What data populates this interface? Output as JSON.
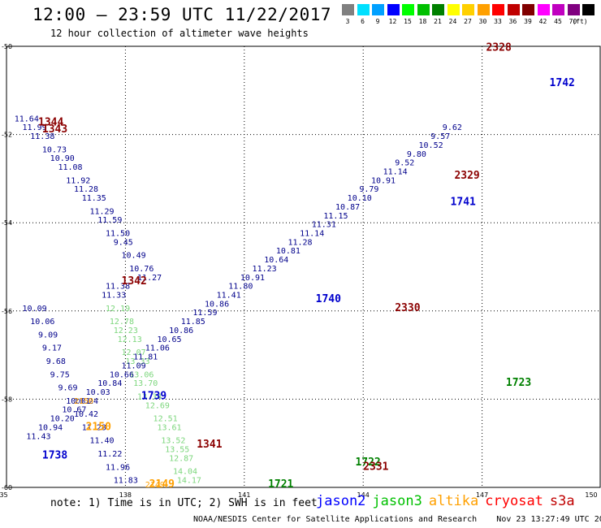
{
  "header": {
    "title": "12:00 – 23:59 UTC 11/22/2017",
    "subtitle": "12 hour collection of altimeter wave heights"
  },
  "color_scale": {
    "unit_label": "(ft)",
    "bins": [
      {
        "label": "3",
        "color": "#808080"
      },
      {
        "label": "6",
        "color": "#00e0ff"
      },
      {
        "label": "9",
        "color": "#00a0ff"
      },
      {
        "label": "12",
        "color": "#0000ff"
      },
      {
        "label": "15",
        "color": "#00ff00"
      },
      {
        "label": "18",
        "color": "#00c000"
      },
      {
        "label": "21",
        "color": "#008000"
      },
      {
        "label": "24",
        "color": "#ffff00"
      },
      {
        "label": "27",
        "color": "#ffd000"
      },
      {
        "label": "30",
        "color": "#ffa000"
      },
      {
        "label": "33",
        "color": "#ff0000"
      },
      {
        "label": "36",
        "color": "#c00000"
      },
      {
        "label": "39",
        "color": "#800000"
      },
      {
        "label": "42",
        "color": "#ff00ff"
      },
      {
        "label": "45",
        "color": "#c000c0"
      },
      {
        "label": "70",
        "color": "#800080"
      },
      {
        "label": "",
        "color": "#000000"
      }
    ]
  },
  "footer": {
    "note": "note: 1) Time is in UTC; 2) SWH is in feet",
    "center": "NOAA/NESDIS Center for Satellite Applications and Research",
    "timestamp": "Nov 23 13:27:49 UTC 2017"
  },
  "legend": [
    {
      "name": "jason2",
      "color": "#0000ff"
    },
    {
      "name": "jason3",
      "color": "#00c000"
    },
    {
      "name": "altika",
      "color": "#ffa000"
    },
    {
      "name": "cryosat",
      "color": "#ff0000"
    },
    {
      "name": "s3a",
      "color": "#c00000"
    }
  ],
  "chart_data": {
    "type": "scatter",
    "xlim": [
      135,
      150
    ],
    "ylim": [
      -60,
      -50
    ],
    "x_ticks": [
      "135",
      "138",
      "141",
      "144",
      "147",
      "150"
    ],
    "y_ticks": [
      "-50",
      "-52",
      "-54",
      "-56",
      "-58",
      "-60"
    ],
    "grid": true,
    "series": [
      {
        "name": "pass 1343/1342 descending",
        "color": "#00008b",
        "x": [
          135.2,
          135.4,
          135.6,
          135.9,
          136.1,
          136.3,
          136.5,
          136.7,
          136.9,
          137.1,
          137.3,
          137.5,
          137.7,
          137.9,
          138.1,
          138.3
        ],
        "y": [
          -51.7,
          -51.9,
          -52.1,
          -52.4,
          -52.6,
          -52.8,
          -53.1,
          -53.3,
          -53.5,
          -53.8,
          -54.0,
          -54.3,
          -54.5,
          -54.8,
          -55.1,
          -55.3
        ],
        "labels": [
          "11.64",
          "11.99",
          "11.38",
          "10.73",
          "10.90",
          "11.08",
          "11.92",
          "11.28",
          "11.35",
          "11.29",
          "11.59",
          "11.50",
          "9.45",
          "10.49",
          "10.76",
          "11.27"
        ]
      },
      {
        "name": "pass 1343/1342 descending cont",
        "color": "#00008b",
        "x": [
          137.5,
          137.4
        ],
        "y": [
          -55.5,
          -55.7
        ],
        "labels": [
          "11.38",
          "11.33"
        ]
      },
      {
        "name": "pass 1342 green",
        "color": "#7cd67c",
        "x": [
          137.5,
          137.6,
          137.7,
          137.8,
          137.9,
          138.0,
          138.1,
          138.2,
          138.3,
          138.5,
          138.7,
          138.8,
          138.9,
          139.0,
          139.1,
          139.2,
          139.3,
          139.4,
          139.5,
          139.6,
          139.7
        ],
        "y": [
          -56.0,
          -56.3,
          -56.5,
          -56.7,
          -57.0,
          -57.2,
          -57.5,
          -57.7,
          -58.0,
          -58.2,
          -58.5,
          -58.7,
          -59.0,
          -59.2,
          -59.4,
          -59.7,
          -59.9,
          -60.0,
          -60.0,
          -60.0,
          -60.0
        ],
        "labels": [
          "12.19",
          "12.78",
          "12.23",
          "12.13",
          "12.07",
          "13.33",
          "13.06",
          "13.70",
          "13.34",
          "12.69",
          "12.51",
          "13.61",
          "13.52",
          "13.55",
          "12.87",
          "14.04",
          "14.17",
          "",
          "",
          "",
          ""
        ]
      },
      {
        "name": "pass 1341",
        "color": "#00008b",
        "x": [
          135.4,
          135.6,
          135.8,
          135.9,
          136.0,
          136.1,
          136.3,
          136.5,
          136.7,
          136.9,
          137.1,
          137.3,
          137.5,
          137.7
        ],
        "y": [
          -56.0,
          -56.3,
          -56.6,
          -56.9,
          -57.2,
          -57.5,
          -57.8,
          -58.1,
          -58.4,
          -58.7,
          -59.0,
          -59.3,
          -59.6,
          -59.9
        ],
        "labels": [
          "10.09",
          "10.06",
          "9.09",
          "9.17",
          "9.68",
          "9.75",
          "9.69",
          "10.01",
          "10.42",
          "11.28",
          "11.40",
          "11.22",
          "11.96",
          "11.83"
        ]
      },
      {
        "name": "pass 1739/1740 ascending",
        "color": "#00008b",
        "x": [
          135.5,
          135.8,
          136.1,
          136.4,
          136.7,
          137.0,
          137.3,
          137.6,
          137.9,
          138.2,
          138.5,
          138.8,
          139.1,
          139.4,
          139.7,
          140.0,
          140.3,
          140.6,
          140.9,
          141.2,
          141.5,
          141.8,
          142.1,
          142.4,
          142.7,
          143.0,
          143.3,
          143.6,
          143.9,
          144.2,
          144.5,
          144.8,
          145.1,
          145.4,
          145.7,
          146.0
        ],
        "y": [
          -58.9,
          -58.7,
          -58.5,
          -58.3,
          -58.1,
          -57.9,
          -57.7,
          -57.5,
          -57.3,
          -57.1,
          -56.9,
          -56.7,
          -56.5,
          -56.3,
          -56.1,
          -55.9,
          -55.7,
          -55.5,
          -55.3,
          -55.1,
          -54.9,
          -54.7,
          -54.5,
          -54.3,
          -54.1,
          -53.9,
          -53.7,
          -53.5,
          -53.3,
          -53.1,
          -52.9,
          -52.7,
          -52.5,
          -52.3,
          -52.1,
          -51.9
        ],
        "labels": [
          "11.43",
          "10.94",
          "10.20",
          "10.67",
          "10.24",
          "10.03",
          "10.84",
          "10.66",
          "11.09",
          "11.81",
          "11.06",
          "10.65",
          "10.86",
          "11.85",
          "11.59",
          "10.86",
          "11.41",
          "11.80",
          "10.91",
          "11.23",
          "10.64",
          "10.81",
          "11.28",
          "11.14",
          "11.31",
          "11.15",
          "10.87",
          "10.10",
          "9.79",
          "10.91",
          "11.14",
          "9.52",
          "9.80",
          "10.52",
          "9.57",
          "9.62"
        ]
      },
      {
        "name": "pass 2149/2150",
        "color": "#ffa000",
        "x": [
          138.5,
          136.7
        ],
        "y": [
          -60.0,
          -58.1
        ],
        "labels": [
          "2149",
          "2150"
        ]
      }
    ],
    "pass_labels": [
      {
        "text": "1344",
        "x": 135.8,
        "y": -51.8,
        "color": "#8b0000"
      },
      {
        "text": "1343",
        "x": 135.9,
        "y": -51.95,
        "color": "#8b0000"
      },
      {
        "text": "1342",
        "x": 137.9,
        "y": -55.4,
        "color": "#8b0000"
      },
      {
        "text": "1341",
        "x": 139.8,
        "y": -59.1,
        "color": "#8b0000"
      },
      {
        "text": "1738",
        "x": 135.9,
        "y": -59.35,
        "color": "#0000cd"
      },
      {
        "text": "1739",
        "x": 138.4,
        "y": -58.0,
        "color": "#0000cd"
      },
      {
        "text": "1740",
        "x": 142.8,
        "y": -55.8,
        "color": "#0000cd"
      },
      {
        "text": "1741",
        "x": 146.2,
        "y": -53.6,
        "color": "#0000cd"
      },
      {
        "text": "1742",
        "x": 148.7,
        "y": -50.9,
        "color": "#0000cd"
      },
      {
        "text": "1723",
        "x": 147.6,
        "y": -57.7,
        "color": "#008000"
      },
      {
        "text": "1721",
        "x": 141.6,
        "y": -60.0,
        "color": "#008000"
      },
      {
        "text": "1722",
        "x": 143.8,
        "y": -59.5,
        "color": "#008000"
      },
      {
        "text": "2149",
        "x": 138.6,
        "y": -60.0,
        "color": "#ffa000"
      },
      {
        "text": "2150",
        "x": 137.0,
        "y": -58.7,
        "color": "#ffa000"
      },
      {
        "text": "2328",
        "x": 147.1,
        "y": -50.1,
        "color": "#8b0000"
      },
      {
        "text": "2329",
        "x": 146.3,
        "y": -53.0,
        "color": "#8b0000"
      },
      {
        "text": "2330",
        "x": 144.8,
        "y": -56.0,
        "color": "#8b0000"
      },
      {
        "text": "2331",
        "x": 144.0,
        "y": -59.6,
        "color": "#8b0000"
      }
    ]
  }
}
